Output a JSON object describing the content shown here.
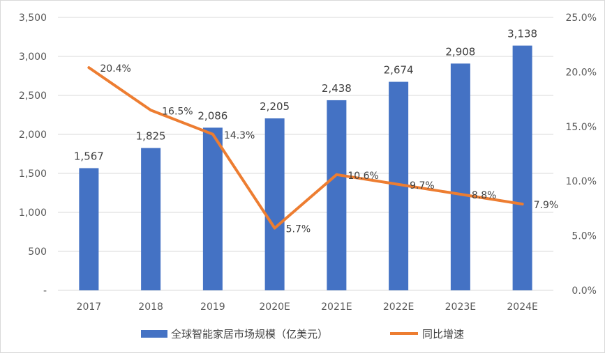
{
  "chart_data": {
    "type": "bar",
    "categories": [
      "2017",
      "2018",
      "2019",
      "2020E",
      "2021E",
      "2022E",
      "2023E",
      "2024E"
    ],
    "series": [
      {
        "name": "全球智能家居市场规模（亿美元）",
        "type": "bar",
        "axis": "left",
        "values": [
          1567,
          1825,
          2086,
          2205,
          2438,
          2674,
          2908,
          3138
        ],
        "labels": [
          "1,567",
          "1,825",
          "2,086",
          "2,205",
          "2,438",
          "2,674",
          "2,908",
          "3,138"
        ],
        "color": "#4472C4"
      },
      {
        "name": "同比增速",
        "type": "line",
        "axis": "right",
        "values": [
          20.4,
          16.5,
          14.3,
          5.7,
          10.6,
          9.7,
          8.8,
          7.9
        ],
        "labels": [
          "20.4%",
          "16.5%",
          "14.3%",
          "5.7%",
          "10.6%",
          "9.7%",
          "8.8%",
          "7.9%"
        ],
        "color": "#ED7D31"
      }
    ],
    "y_left": {
      "ylim": [
        0,
        3500
      ],
      "ticks": [
        0,
        500,
        1000,
        1500,
        2000,
        2500,
        3000,
        3500
      ],
      "tick_labels": [
        "-",
        "500",
        "1,000",
        "1,500",
        "2,000",
        "2,500",
        "3,000",
        "3,500"
      ]
    },
    "y_right": {
      "ylim": [
        0,
        25
      ],
      "ticks": [
        0,
        5,
        10,
        15,
        20,
        25
      ],
      "tick_labels": [
        "0.0%",
        "5.0%",
        "10.0%",
        "15.0%",
        "20.0%",
        "25.0%"
      ]
    },
    "grid": true,
    "legend": "bottom",
    "title": "",
    "xlabel": "",
    "ylabel": ""
  }
}
